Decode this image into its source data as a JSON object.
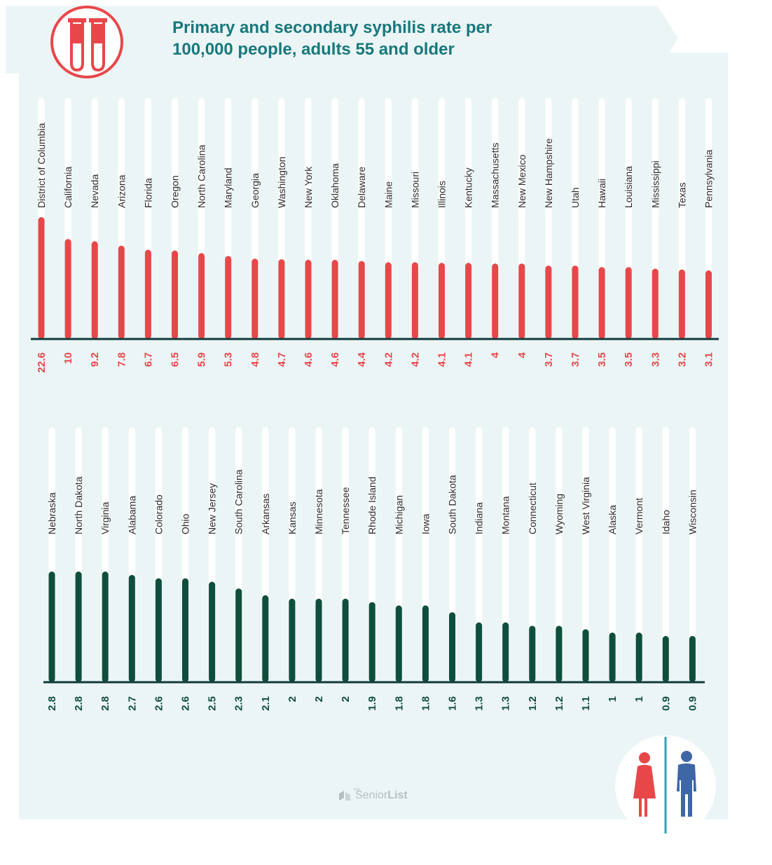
{
  "title_lines": [
    "Primary and secondary syphilis rate per",
    "100,000 people, adults 55 and older"
  ],
  "logo": {
    "small": "THE",
    "name_a": "Senior",
    "name_b": "List"
  },
  "icons": {
    "header": "test-tubes-icon",
    "footer": "man-woman-icon",
    "logo": "senior-list-logo-icon"
  },
  "colors": {
    "top_series": "#e8474a",
    "bottom_series": "#0f4e3c",
    "value_top": "#e8474a",
    "value_bottom": "#0f4e3c",
    "title": "#17787c",
    "track": "#ffffff",
    "panel": "#ecf5f6"
  },
  "chart_data": [
    {
      "type": "bar",
      "orientation": "vertical",
      "categories": [
        "District of Columbia",
        "California",
        "Nevada",
        "Arizona",
        "Florida",
        "Oregon",
        "North Carolina",
        "Maryland",
        "Georgia",
        "Washington",
        "New York",
        "Oklahoma",
        "Delaware",
        "Maine",
        "Missouri",
        "Illinois",
        "Kentucky",
        "Massachusetts",
        "New Mexico",
        "New Hampshire",
        "Utah",
        "Hawaii",
        "Louisiana",
        "Mississippi",
        "Texas",
        "Pennsylvania"
      ],
      "values": [
        22.6,
        10,
        9.2,
        7.8,
        6.7,
        6.5,
        5.9,
        5.3,
        4.8,
        4.7,
        4.6,
        4.6,
        4.4,
        4.2,
        4.2,
        4.1,
        4.1,
        4,
        4,
        3.7,
        3.7,
        3.5,
        3.5,
        3.3,
        3.2,
        3.1
      ],
      "value_labels_rotated": true,
      "grid": false,
      "legend": "none"
    },
    {
      "type": "bar",
      "orientation": "vertical",
      "categories": [
        "Nebraska",
        "North Dakota",
        "Virginia",
        "Alabama",
        "Colorado",
        "Ohio",
        "New Jersey",
        "South Carolina",
        "Arkansas",
        "Kansas",
        "Minnesota",
        "Tennessee",
        "Rhode Island",
        "Michigan",
        "Iowa",
        "South Dakota",
        "Indiana",
        "Montana",
        "Connecticut",
        "Wyoming",
        "West Virginia",
        "Alaska",
        "Vermont",
        "Idaho",
        "Wisconsin"
      ],
      "values": [
        2.8,
        2.8,
        2.8,
        2.7,
        2.6,
        2.6,
        2.5,
        2.3,
        2.1,
        2,
        2,
        2,
        1.9,
        1.8,
        1.8,
        1.6,
        1.3,
        1.3,
        1.2,
        1.2,
        1.1,
        1,
        1,
        0.9,
        0.9
      ],
      "value_labels_rotated": true,
      "grid": false,
      "legend": "none"
    }
  ]
}
